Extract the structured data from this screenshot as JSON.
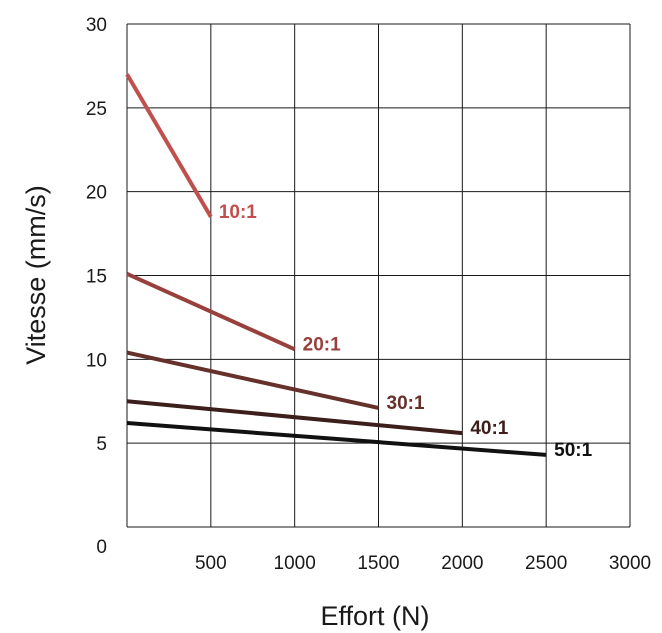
{
  "chart_data": {
    "type": "line",
    "title": "",
    "xlabel": "Effort (N)",
    "ylabel": "Vitesse (mm/s)",
    "xlim": [
      0,
      3000
    ],
    "ylim": [
      0,
      30
    ],
    "x_ticks": [
      "500",
      "1000",
      "1500",
      "2000",
      "2500",
      "3000"
    ],
    "x_tick_values": [
      500,
      1000,
      1500,
      2000,
      2500,
      3000
    ],
    "y_ticks": [
      "0",
      "5",
      "10",
      "15",
      "20",
      "25",
      "30"
    ],
    "y_tick_values": [
      0,
      5,
      10,
      15,
      20,
      25,
      30
    ],
    "grid": true,
    "legend": "none",
    "series": [
      {
        "name": "10:1",
        "x": [
          0,
          500
        ],
        "y": [
          27.0,
          18.5
        ],
        "color": "#c0504d"
      },
      {
        "name": "20:1",
        "x": [
          0,
          1000
        ],
        "y": [
          15.1,
          10.6
        ],
        "color": "#98403b"
      },
      {
        "name": "30:1",
        "x": [
          0,
          1500
        ],
        "y": [
          10.4,
          7.1
        ],
        "color": "#66302b"
      },
      {
        "name": "40:1",
        "x": [
          0,
          2000
        ],
        "y": [
          7.5,
          5.6
        ],
        "color": "#3c1e1b"
      },
      {
        "name": "50:1",
        "x": [
          0,
          2500
        ],
        "y": [
          6.2,
          4.3
        ],
        "color": "#111111"
      }
    ]
  }
}
